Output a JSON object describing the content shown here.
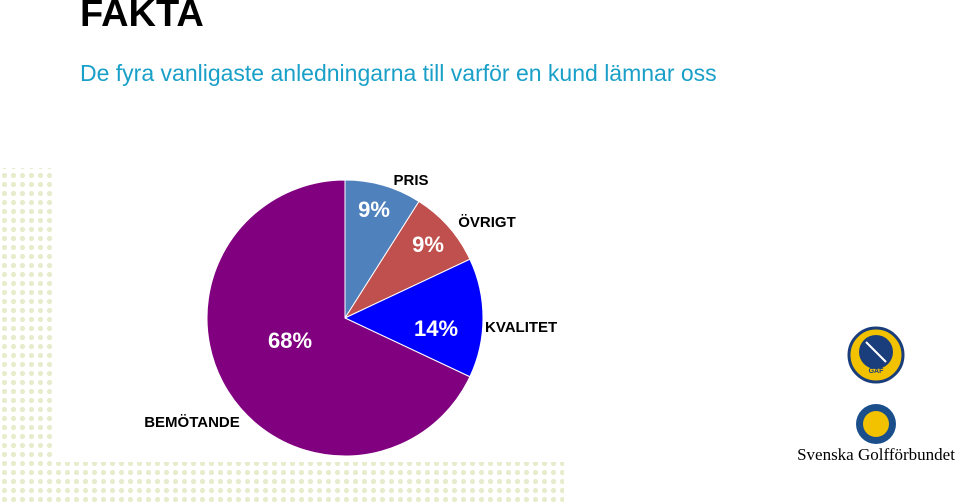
{
  "header": {
    "title": "FAKTA",
    "subtitle": "De fyra vanligaste anledningarna till varför en kund lämnar oss"
  },
  "chart_data": {
    "type": "pie",
    "categories": [
      "PRIS",
      "ÖVRIGT",
      "KVALITET",
      "BEMÖTANDE"
    ],
    "values": [
      9,
      9,
      14,
      68
    ],
    "value_labels": [
      "9%",
      "9%",
      "14%",
      "68%"
    ],
    "colors": [
      "#4f81bd",
      "#c0504d",
      "#0000ff",
      "#800080"
    ]
  },
  "logos": {
    "gaf": "GAF",
    "sgf": "Svenska Golfförbundet"
  }
}
